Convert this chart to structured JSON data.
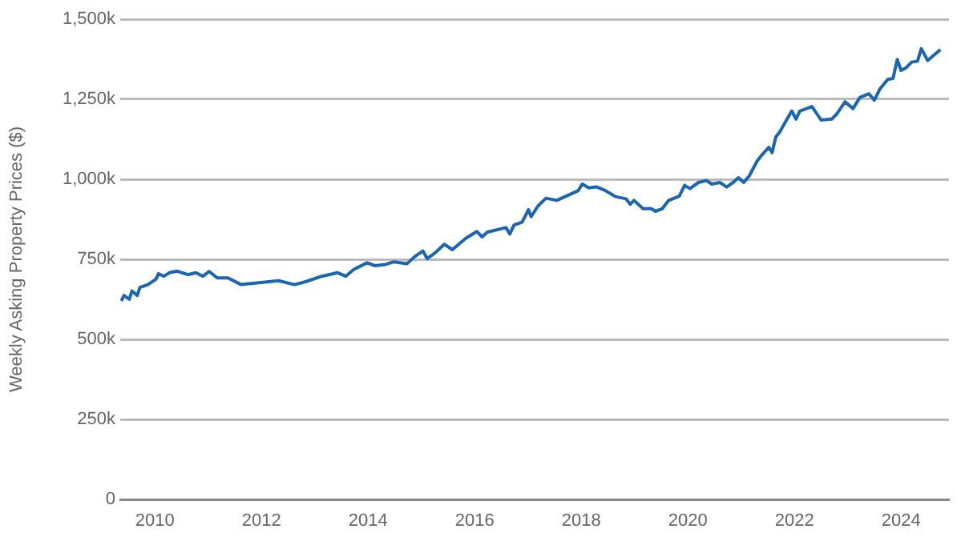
{
  "chart_data": {
    "type": "line",
    "ylabel": "Weekly Asking Property Prices ($)",
    "xlim": [
      2009.35,
      2024.9
    ],
    "xticks": [
      2010,
      2012,
      2014,
      2016,
      2018,
      2020,
      2022,
      2024
    ],
    "ylim": [
      0,
      1500
    ],
    "yticks": [
      {
        "value": 0,
        "label": "0"
      },
      {
        "value": 250,
        "label": "250k"
      },
      {
        "value": 500,
        "label": "500k"
      },
      {
        "value": 750,
        "label": "750k"
      },
      {
        "value": 1000,
        "label": "1,000k"
      },
      {
        "value": 1250,
        "label": "1,250k"
      },
      {
        "value": 1500,
        "label": "1,500k"
      }
    ],
    "grid": "y",
    "marker": "none",
    "line_style": "solid",
    "series": [
      {
        "color": "#1a66b2",
        "x": [
          2009.37,
          2009.42,
          2009.52,
          2009.57,
          2009.67,
          2009.72,
          2009.87,
          2010.02,
          2010.07,
          2010.17,
          2010.27,
          2010.42,
          2010.62,
          2010.77,
          2010.9,
          2011.02,
          2011.17,
          2011.37,
          2011.62,
          2011.92,
          2012.32,
          2012.62,
          2012.83,
          2013.13,
          2013.43,
          2013.58,
          2013.73,
          2013.98,
          2014.13,
          2014.33,
          2014.48,
          2014.73,
          2014.88,
          2015.03,
          2015.11,
          2015.25,
          2015.43,
          2015.58,
          2015.83,
          2016.04,
          2016.14,
          2016.24,
          2016.59,
          2016.66,
          2016.74,
          2016.89,
          2017.01,
          2017.06,
          2017.19,
          2017.34,
          2017.54,
          2017.94,
          2018.02,
          2018.14,
          2018.29,
          2018.44,
          2018.64,
          2018.84,
          2018.92,
          2018.99,
          2019.16,
          2019.32,
          2019.39,
          2019.52,
          2019.64,
          2019.84,
          2019.94,
          2020.04,
          2020.2,
          2020.35,
          2020.45,
          2020.6,
          2020.73,
          2020.85,
          2020.95,
          2021.05,
          2021.15,
          2021.3,
          2021.4,
          2021.52,
          2021.58,
          2021.65,
          2021.73,
          2021.83,
          2021.95,
          2022.03,
          2022.1,
          2022.33,
          2022.5,
          2022.7,
          2022.8,
          2022.95,
          2023.1,
          2023.23,
          2023.4,
          2023.5,
          2023.6,
          2023.75,
          2023.85,
          2023.93,
          2024.0,
          2024.1,
          2024.2,
          2024.31,
          2024.38,
          2024.5,
          2024.74
        ],
        "values": [
          620,
          637,
          625,
          651,
          637,
          662,
          671,
          688,
          705,
          697,
          708,
          713,
          702,
          708,
          697,
          712,
          692,
          692,
          671,
          676,
          683,
          671,
          680,
          697,
          708,
          697,
          718,
          739,
          730,
          734,
          742,
          736,
          759,
          776,
          752,
          769,
          797,
          780,
          815,
          837,
          820,
          835,
          849,
          829,
          857,
          866,
          905,
          883,
          917,
          941,
          934,
          964,
          985,
          973,
          976,
          966,
          946,
          939,
          922,
          934,
          908,
          908,
          900,
          908,
          934,
          947,
          981,
          971,
          990,
          996,
          985,
          990,
          976,
          990,
          1005,
          990,
          1010,
          1057,
          1078,
          1100,
          1083,
          1132,
          1149,
          1179,
          1213,
          1188,
          1213,
          1227,
          1185,
          1188,
          1205,
          1242,
          1221,
          1256,
          1267,
          1247,
          1281,
          1312,
          1315,
          1374,
          1340,
          1349,
          1366,
          1369,
          1408,
          1371,
          1405
        ]
      }
    ]
  }
}
